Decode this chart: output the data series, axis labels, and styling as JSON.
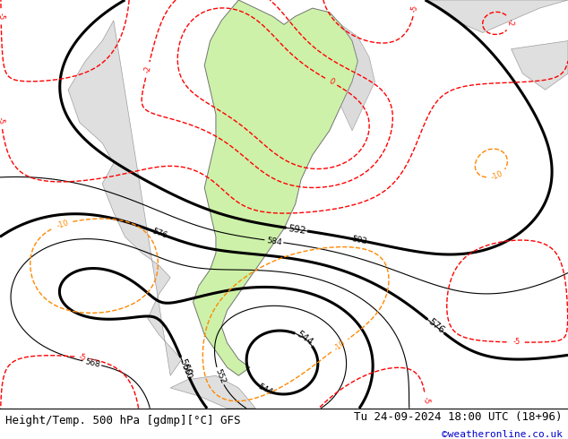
{
  "title_left": "Height/Temp. 500 hPa [gdmp][°C] GFS",
  "title_right": "Tu 24-09-2024 18:00 UTC (18+96)",
  "credit": "©weatheronline.co.uk",
  "background_color": "#e8e8e8",
  "land_color": "#f0f0f0",
  "highlight_color": "#c8f0a0",
  "fig_width": 6.34,
  "fig_height": 4.9,
  "dpi": 100,
  "title_fontsize": 9,
  "credit_fontsize": 8,
  "credit_color": "#0000cc"
}
